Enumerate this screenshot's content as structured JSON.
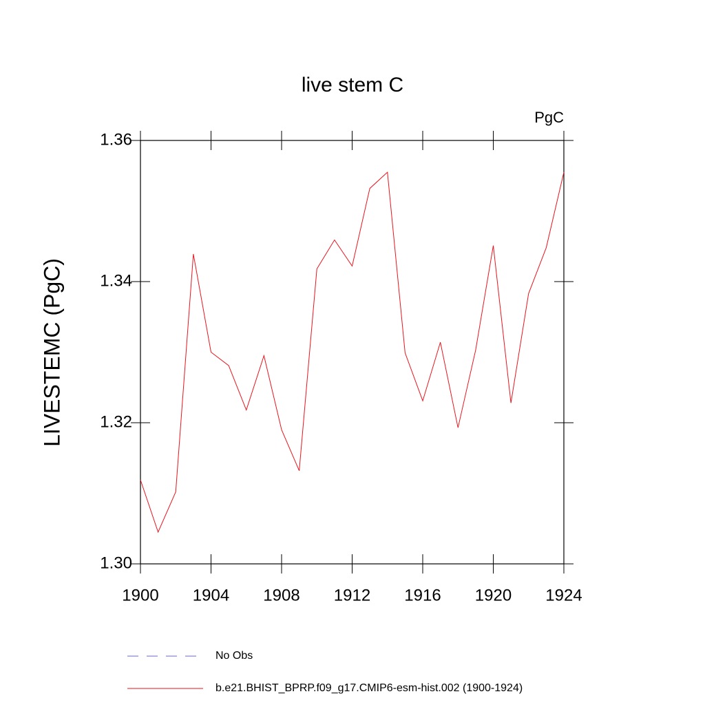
{
  "chart_data": {
    "type": "line",
    "title": "live stem C",
    "units_label": "PgC",
    "y_label": "LIVESTEMC  (PgC)",
    "x": [
      1900,
      1901,
      1902,
      1903,
      1904,
      1905,
      1906,
      1907,
      1908,
      1909,
      1910,
      1911,
      1912,
      1913,
      1914,
      1915,
      1916,
      1917,
      1918,
      1919,
      1920,
      1921,
      1922,
      1923,
      1924
    ],
    "series": [
      {
        "name": "b.e21.BHIST_BPRP.f09_g17.CMIP6-esm-hist.002 (1900-1924)",
        "color": "#e8141c",
        "values": [
          1.3119,
          1.3045,
          1.3102,
          1.3439,
          1.33,
          1.3281,
          1.3218,
          1.3295,
          1.319,
          1.3132,
          1.3418,
          1.3459,
          1.3422,
          1.3532,
          1.3555,
          1.3299,
          1.3231,
          1.3314,
          1.3193,
          1.3303,
          1.3451,
          1.3228,
          1.3383,
          1.3448,
          1.3555
        ]
      }
    ],
    "legend_extra": [
      {
        "name": "No Obs",
        "color": "#6a6ac8",
        "dash": true
      }
    ],
    "xlim": [
      1900,
      1924
    ],
    "xticks": [
      1900,
      1904,
      1908,
      1912,
      1916,
      1920,
      1924
    ],
    "ylim": [
      1.3,
      1.36
    ],
    "yticks": [
      {
        "value": 1.3,
        "label": "1.30"
      },
      1.32,
      1.34,
      1.36
    ]
  }
}
